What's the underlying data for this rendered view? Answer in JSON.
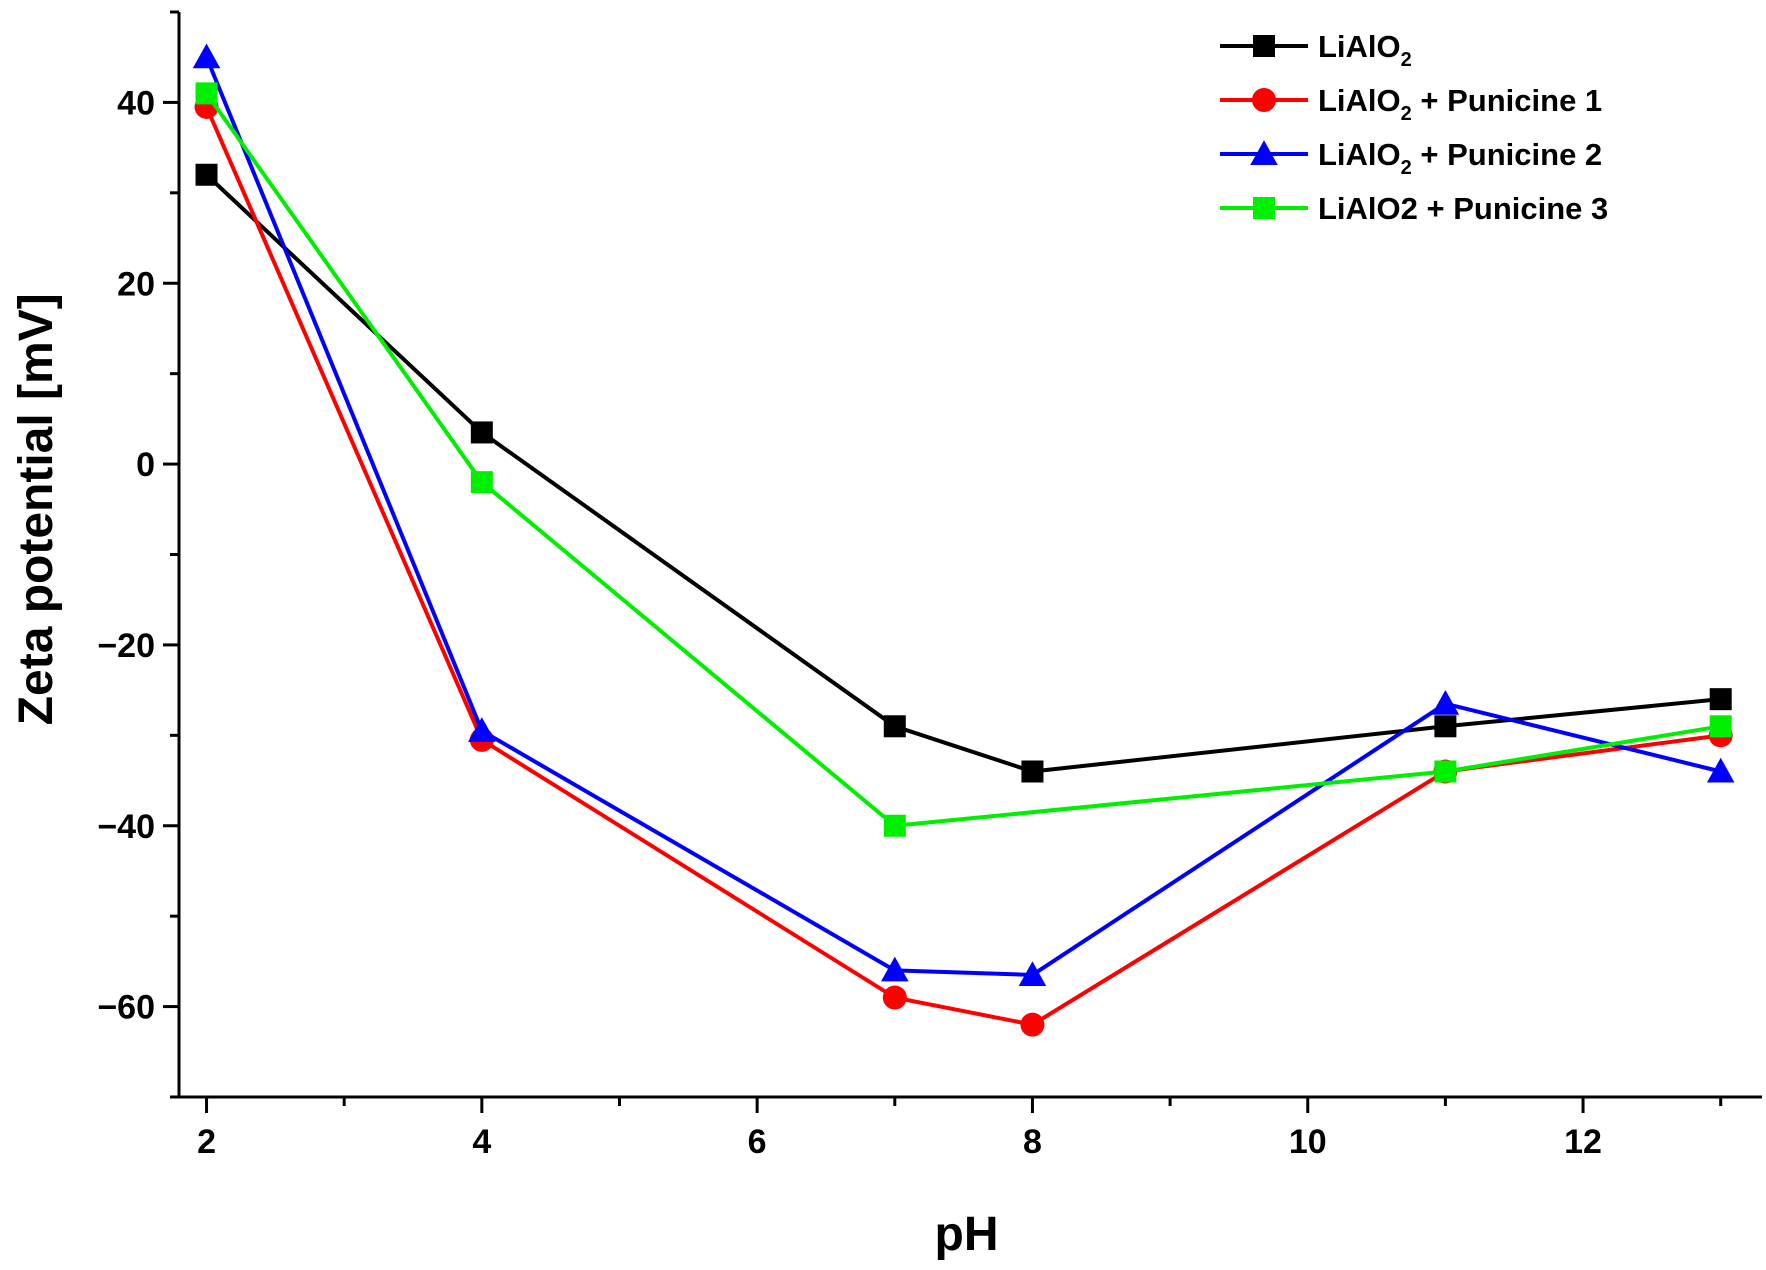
{
  "chart_data": {
    "type": "line",
    "xlabel": "pH",
    "ylabel": "Zeta potential [mV]",
    "xlim": [
      1.8,
      13.3
    ],
    "ylim": [
      -70,
      50
    ],
    "x_ticks": [
      "2",
      "4",
      "6",
      "8",
      "10",
      "12"
    ],
    "y_ticks": [
      "-60",
      "-40",
      "-20",
      "0",
      "20",
      "40"
    ],
    "grid": false,
    "legend_position": "top-right",
    "x": [
      2,
      4,
      7,
      8,
      11,
      13
    ],
    "series": [
      {
        "name": "LiAlO",
        "name_sub": "2",
        "name_suffix": "",
        "color": "#000000",
        "marker": "square",
        "values": [
          32,
          3.5,
          -29,
          -34,
          -29,
          -26
        ]
      },
      {
        "name": "LiAlO",
        "name_sub": "2",
        "name_suffix": " + Punicine 1",
        "color": "#ff0000",
        "marker": "circle",
        "values": [
          39.5,
          -30.5,
          -59,
          -62,
          -34,
          -30
        ]
      },
      {
        "name": "LiAlO",
        "name_sub": "2",
        "name_suffix": " + Punicine 2",
        "color": "#0000ff",
        "marker": "triangle",
        "values": [
          45,
          -29.5,
          -56,
          -56.5,
          -26.5,
          -34
        ]
      },
      {
        "name": "LiAlO2 + Punicine 3",
        "name_sub": "",
        "name_suffix": "",
        "color": "#00ee00",
        "marker": "square",
        "values": [
          41,
          -2,
          -40,
          null,
          -34,
          -29
        ]
      }
    ]
  }
}
